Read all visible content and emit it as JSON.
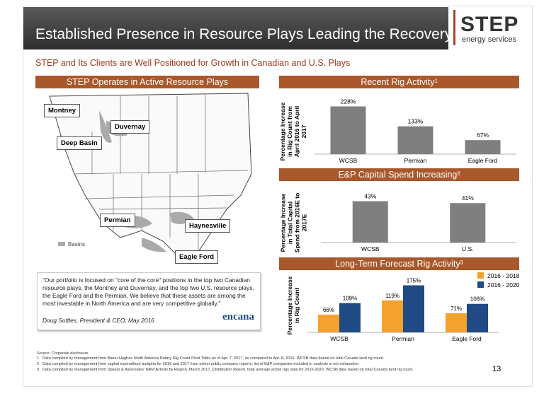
{
  "header": {
    "title": "Established Presence in Resource Plays Leading the Recovery",
    "logo": "STEP",
    "logo_subtitle": "energy services",
    "subtitle": "STEP and Its Clients are Well Positioned for Growth in Canadian and U.S. Plays"
  },
  "map_panel": {
    "title": "STEP Operates in Active Resource Plays",
    "labels": [
      "Montney",
      "Duvernay",
      "Deep Basin",
      "Permian",
      "Haynesville",
      "Eagle Ford"
    ],
    "legend": "Basins"
  },
  "quote": {
    "text": "\"Our portfolio is focused on \"core of the core\" positions in the top two Canadian resource plays, the Montney and Duvernay, and the top two U.S. resource plays, the Eagle Ford and the Permian. We believe that these assets are among the most investable in North America and are very competitive globally.\"",
    "author": "Doug Suttles, President & CEO; May 2016",
    "logo": "encana"
  },
  "chart_data": [
    {
      "type": "bar",
      "title": "Recent Rig Activity¹",
      "ylabel": "Percentage Increase in Rig Count from April 2016 to April 2017",
      "categories": [
        "WCSB",
        "Permian",
        "Eagle Ford"
      ],
      "values": [
        228,
        133,
        67
      ],
      "value_labels": [
        "228%",
        "133%",
        "67%"
      ],
      "color": "#7f7f7f",
      "ylim": [
        0,
        250
      ]
    },
    {
      "type": "bar",
      "title": "E&P Capital Spend Increasing²",
      "ylabel": "Percentage Increase in Total Capital Spend from 2016E to 2017E",
      "categories": [
        "WCSB",
        "U.S."
      ],
      "values": [
        43,
        41
      ],
      "value_labels": [
        "43%",
        "41%"
      ],
      "color": "#7f7f7f",
      "ylim": [
        0,
        50
      ]
    },
    {
      "type": "grouped_bar",
      "title": "Long-Term Forecast Rig Activity³",
      "ylabel": "Percentage Increase in Rig Count",
      "categories": [
        "WCSB",
        "Permian",
        "Eagle Ford"
      ],
      "series": [
        {
          "name": "2016 - 2018",
          "color": "#f4a22e",
          "values": [
            66,
            119,
            71
          ],
          "value_labels": [
            "66%",
            "119%",
            "71%"
          ]
        },
        {
          "name": "2016 - 2020",
          "color": "#1f4a85",
          "values": [
            109,
            175,
            106
          ],
          "value_labels": [
            "109%",
            "175%",
            "106%"
          ]
        }
      ],
      "ylim": [
        0,
        200
      ],
      "legend": "upper right"
    }
  ],
  "footnotes": {
    "source": "Source: Corporate disclosure.",
    "notes": [
      {
        "number": "1",
        "text": "Data compiled by management from Baker Hughes North America Rotary Rig Count Pivot Table as of Apr. 7, 2017, as compared to Apr. 8, 2016. WCSB data based on total Canada land rig count."
      },
      {
        "number": "2",
        "text": "Data compiled by management from capital expenditure budgets for 2016 and 2017 from select public company reports; list of E&P companies included in analysis is not exhaustive."
      },
      {
        "number": "3",
        "text": "Data compiled by management from Spears & Associates' NAM Activity by Region_March 2017_Distribution Report, total average active rigs data for 2016-2020. WCSB data based on total Canada land rig count."
      }
    ]
  },
  "page_number": "13"
}
